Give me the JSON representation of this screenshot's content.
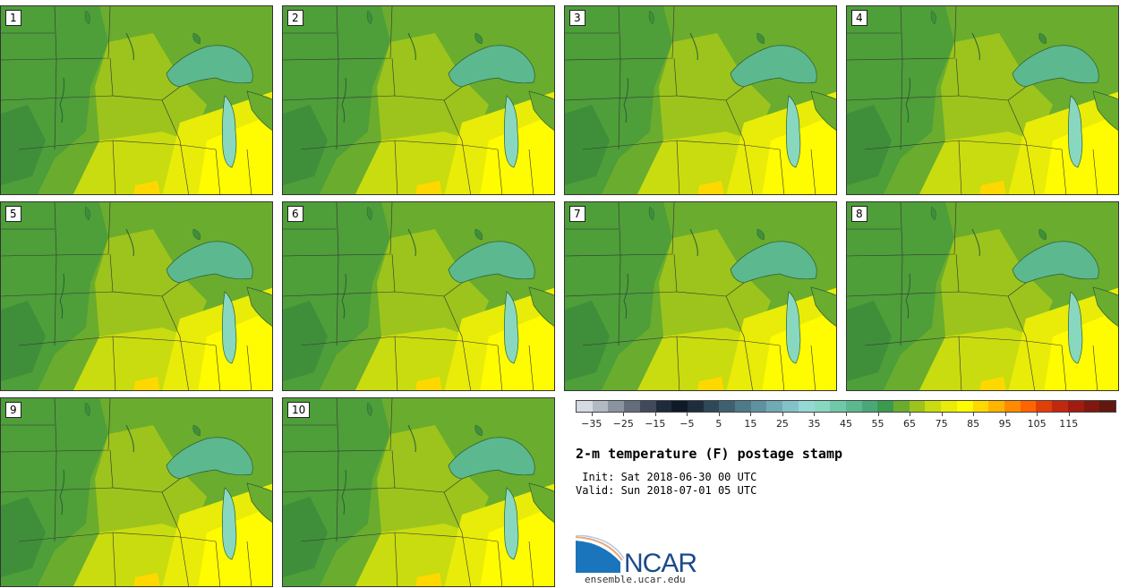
{
  "stamps": [
    {
      "label": "1"
    },
    {
      "label": "2"
    },
    {
      "label": "3"
    },
    {
      "label": "4"
    },
    {
      "label": "5"
    },
    {
      "label": "6"
    },
    {
      "label": "7"
    },
    {
      "label": "8"
    },
    {
      "label": "9"
    },
    {
      "label": "10"
    }
  ],
  "colorbar": {
    "colors": [
      "#d5dbe0",
      "#b2b9c2",
      "#8a93a0",
      "#646d7c",
      "#414a5c",
      "#1f2b3c",
      "#0f1a28",
      "#1e2d3c",
      "#2f4858",
      "#3f6070",
      "#4f7a88",
      "#5f92a0",
      "#70aab5",
      "#82c2c8",
      "#95d8d5",
      "#88d8c0",
      "#70c8a8",
      "#5cb88f",
      "#4aa878",
      "#3b9a4e",
      "#6aac2e",
      "#9cc41c",
      "#c8dc10",
      "#e8ec08",
      "#fffb00",
      "#ffd800",
      "#ffb400",
      "#ff8c00",
      "#ff6400",
      "#e04008",
      "#c02810",
      "#a01c10",
      "#801810",
      "#601810"
    ],
    "tick_labels": [
      "−35",
      "−25",
      "−15",
      "−5",
      "5",
      "15",
      "25",
      "35",
      "45",
      "55",
      "65",
      "75",
      "85",
      "95",
      "105",
      "115"
    ],
    "min": -40,
    "max": 130
  },
  "title": "2-m temperature (F) postage stamp",
  "init_line": " Init: Sat 2018-06-30 00 UTC",
  "valid_line": "Valid: Sun 2018-07-01 05 UTC",
  "logo_text": "NCAR",
  "logo_url": "ensemble.ucar.edu"
}
